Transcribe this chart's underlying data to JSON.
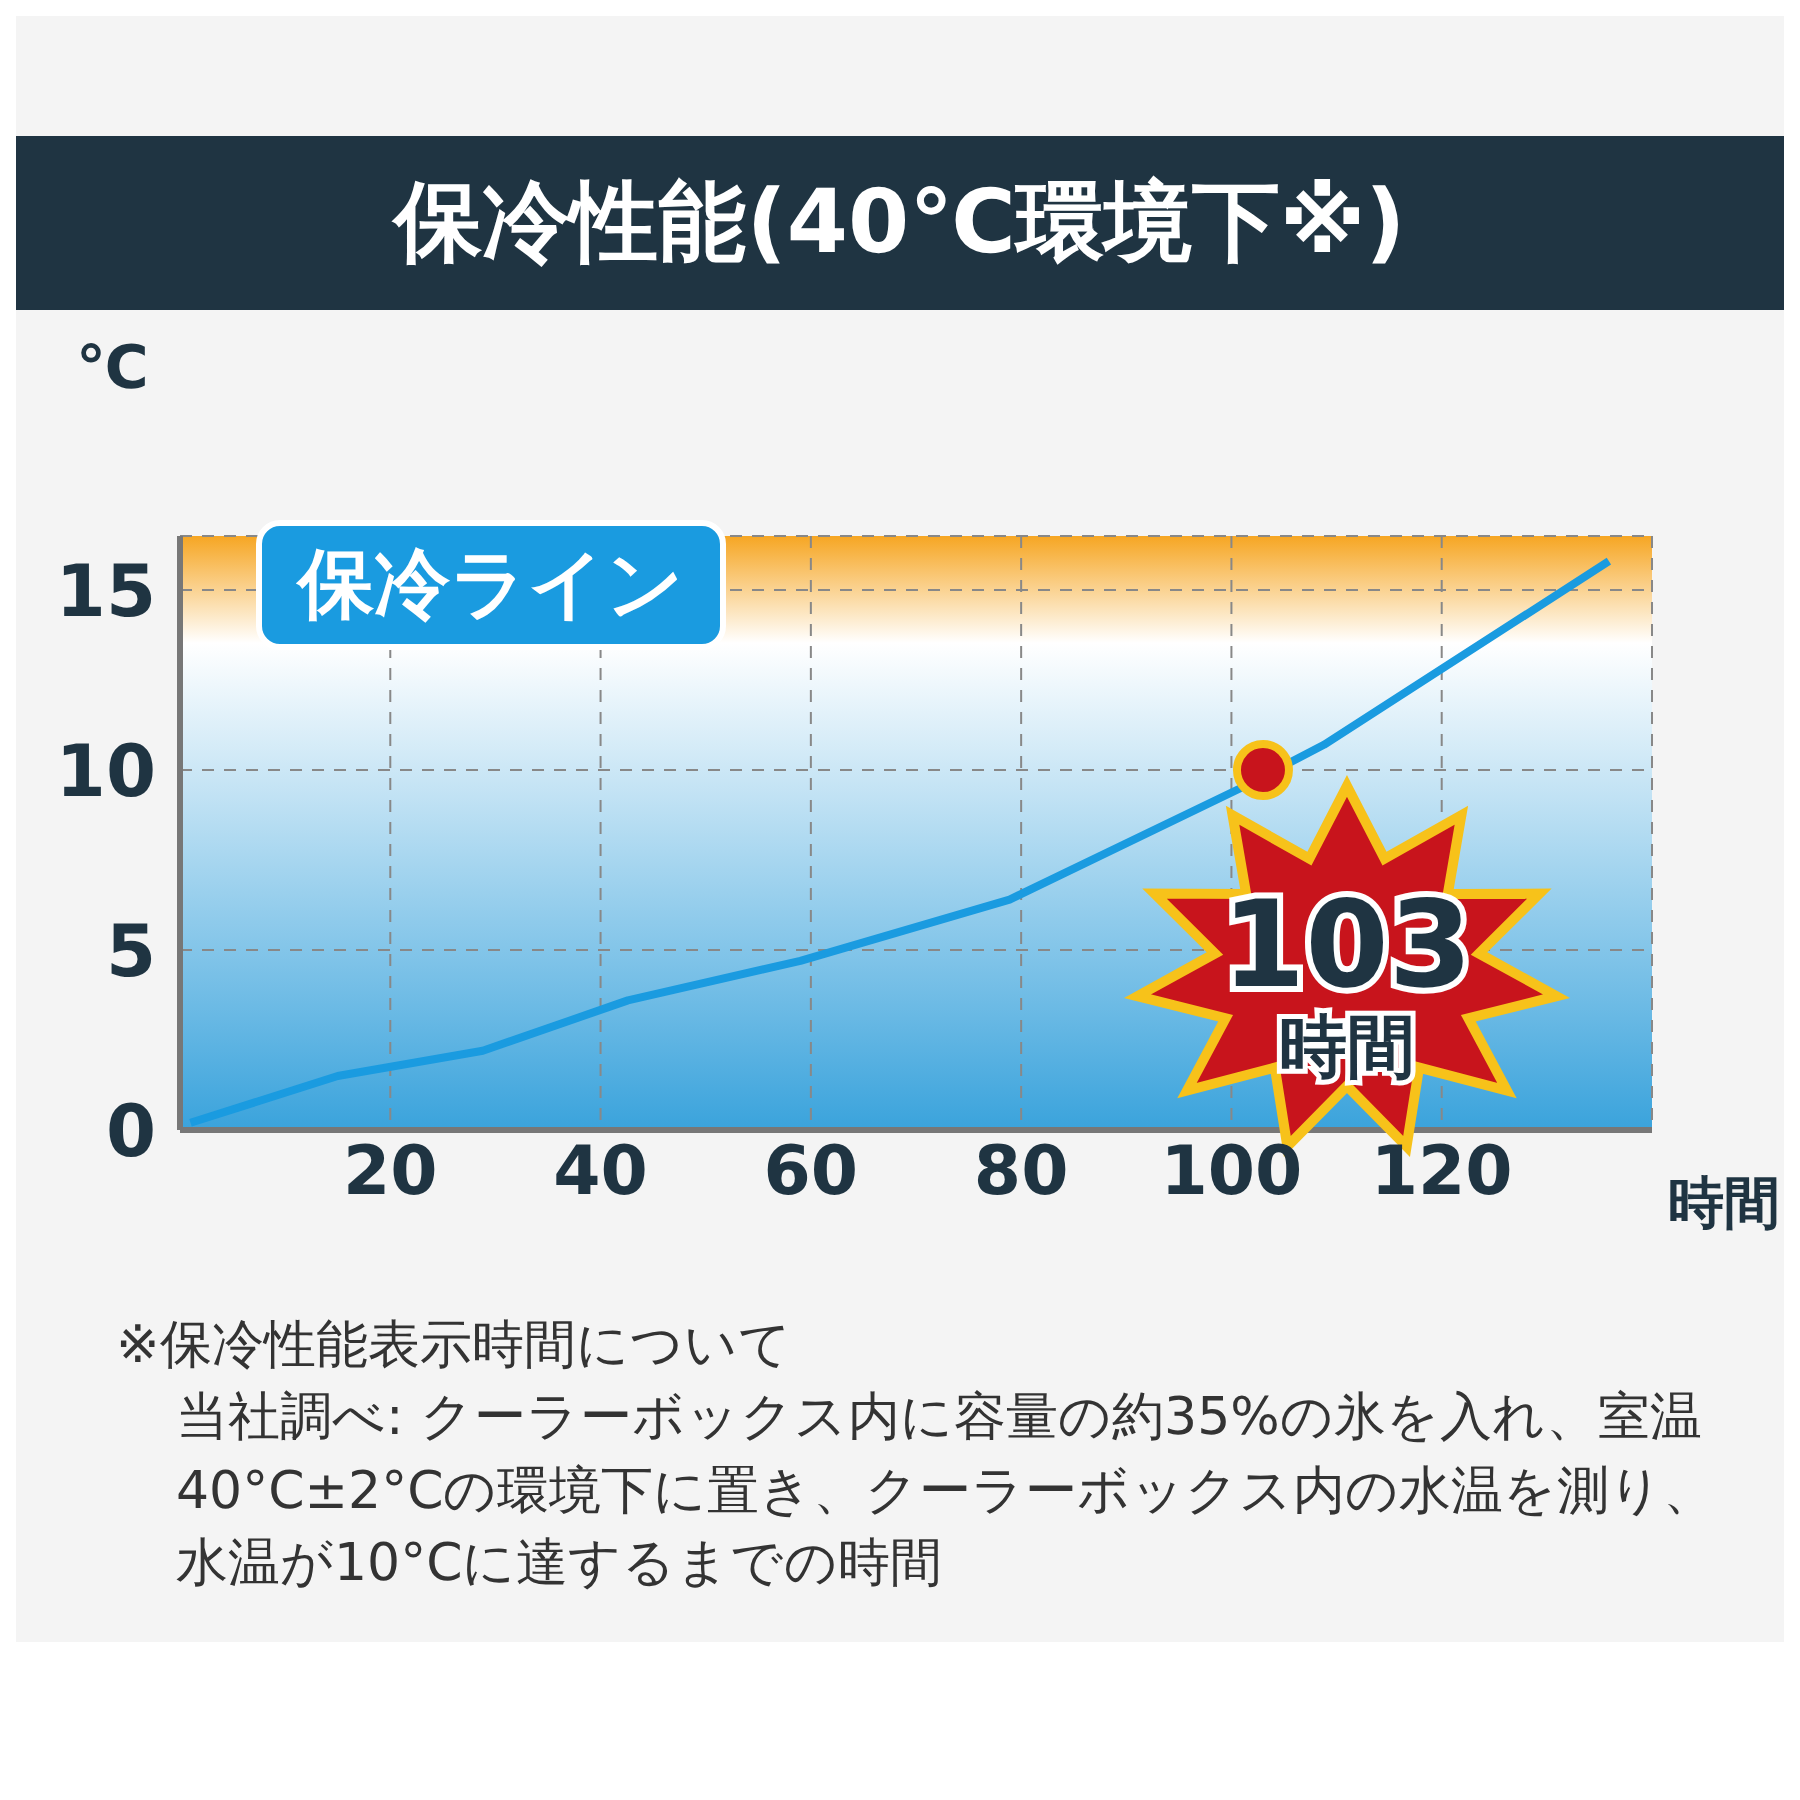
{
  "chart_data": {
    "type": "line",
    "title": "保冷性能(40℃環境下※)",
    "ylabel": "℃",
    "xlabel": "時間",
    "xlim": [
      0,
      140
    ],
    "xticks": [
      20,
      40,
      60,
      80,
      100,
      120
    ],
    "ylim": [
      0,
      16.5
    ],
    "yticks": [
      0,
      5,
      10,
      15
    ],
    "grid": true,
    "legend": "top left",
    "marker": "none",
    "line_style": "solid",
    "series": [
      {
        "name": "保冷ライン",
        "color": "#1a9be0",
        "x": [
          1,
          15,
          28.8,
          42.6,
          59,
          78.9,
          100.9,
          108.8,
          135.9
        ],
        "values": [
          0.2,
          1.5,
          2.2,
          3.6,
          4.7,
          6.4,
          9.5,
          10.7,
          15.8
        ]
      }
    ],
    "annotations": [
      {
        "text": "103 時間",
        "x": 103,
        "y": 10
      },
      "※保冷性能表示時間について",
      "当社調べ: クーラーボックス内に容量の約35%の氷を入れ、室温40°C±2°Cの環境下に置き、クーラーボックス内の水温を測り、水温が10°Cに達するまでの時間"
    ]
  }
}
